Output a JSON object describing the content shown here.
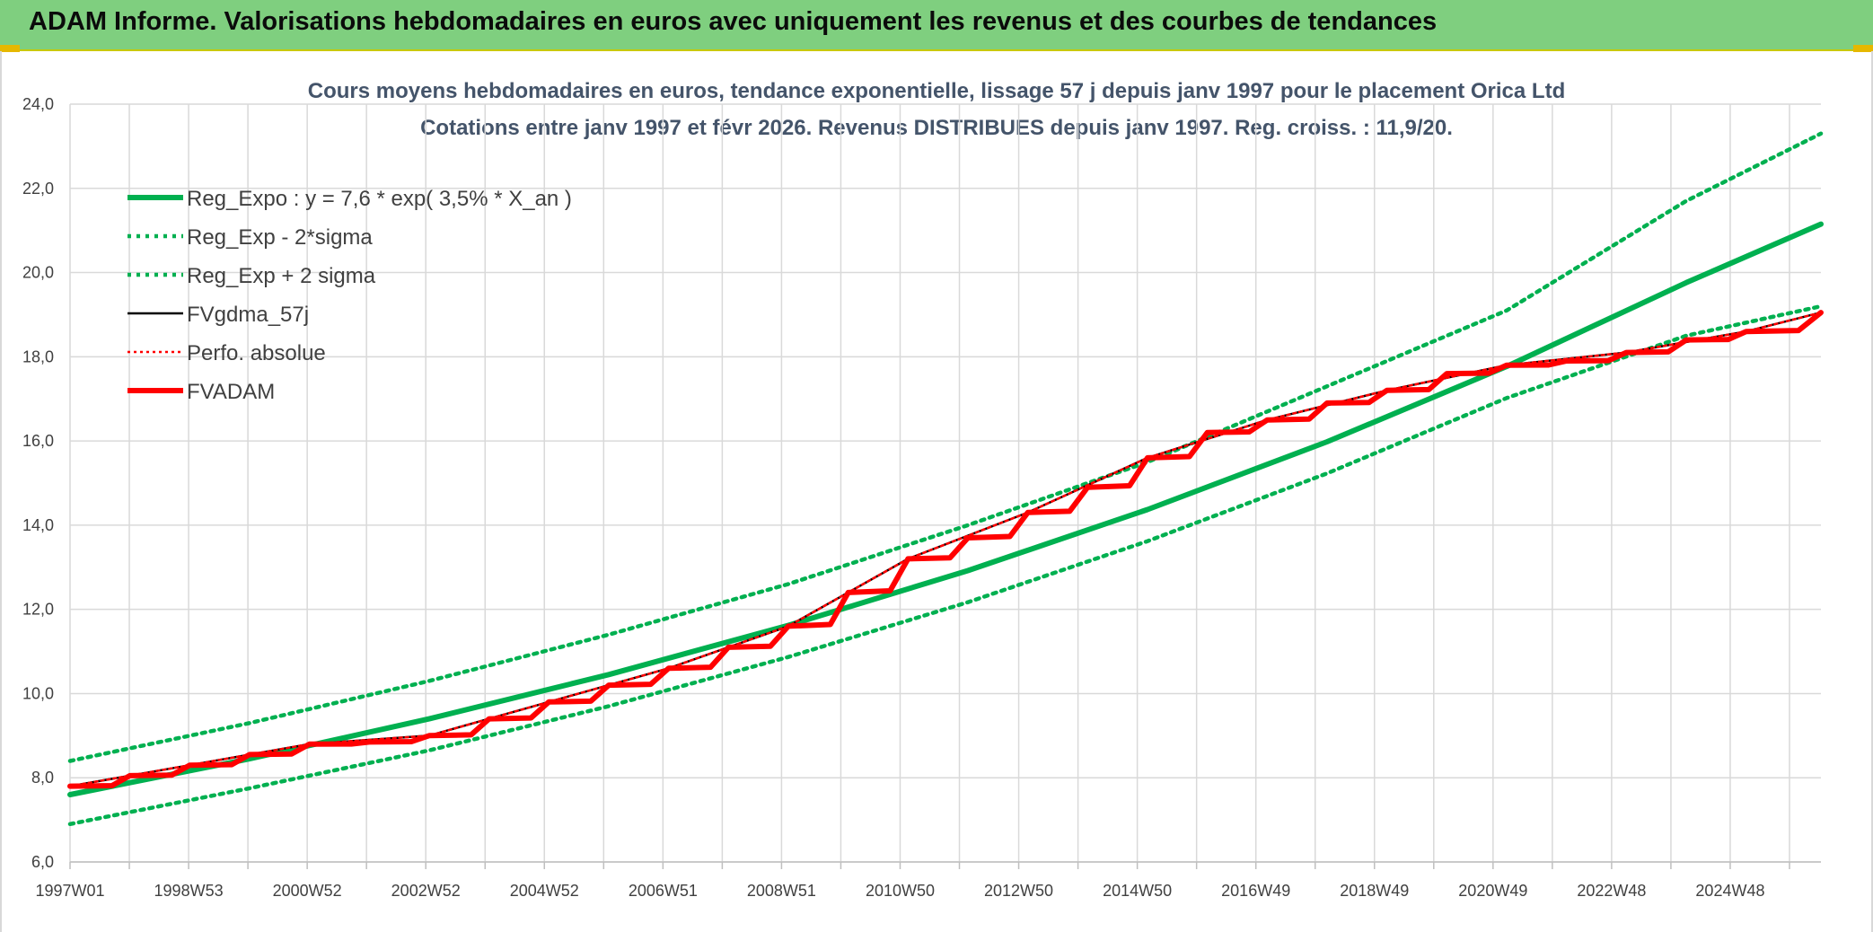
{
  "header": {
    "title": "ADAM Informe. Valorisations hebdomadaires en euros avec uniquement les revenus et des courbes de tendances"
  },
  "colors": {
    "header_bg": "#7fcf7f",
    "reg_expo": "#00b050",
    "fvgdma": "#000000",
    "perfo": "#ff0000",
    "fvadam": "#ff0000"
  },
  "chart_data": {
    "type": "line",
    "title": "Cours moyens hebdomadaires en euros, tendance exponentielle, lissage 57 j depuis janv 1997 pour le placement Orica Ltd",
    "subtitle": "Cotations entre janv 1997 et févr 2026. Revenus DISTRIBUES depuis janv 1997. Reg. croiss. : 11,9/20.",
    "xlabel": "",
    "ylabel": "",
    "ylim": [
      6,
      24
    ],
    "yticks": [
      "24,0",
      "22,0",
      "20,0",
      "18,0",
      "16,0",
      "14,0",
      "12,0",
      "10,0",
      "8,0",
      "6,0"
    ],
    "xlim": [
      1997.0,
      2026.25
    ],
    "xtick_labels": [
      "1997W01",
      "1998W53",
      "2000W52",
      "2002W52",
      "2004W52",
      "2006W51",
      "2008W51",
      "2010W50",
      "2012W50",
      "2014W50",
      "2016W49",
      "2018W49",
      "2020W49",
      "2022W48",
      "2024W48"
    ],
    "grid": true,
    "legend_position": "top-left",
    "series": [
      {
        "name": "Reg_Expo : y = 7,6 * exp( 3,5% *  X_an )",
        "style": "solid-thick",
        "color": "#00b050",
        "x": [
          1997,
          2000,
          2003,
          2006,
          2009,
          2012,
          2015,
          2018,
          2021,
          2024,
          2026.25
        ],
        "values": [
          7.6,
          8.45,
          9.4,
          10.45,
          11.62,
          12.92,
          14.37,
          15.98,
          17.77,
          19.76,
          21.15
        ]
      },
      {
        "name": "Reg_Exp - 2*sigma",
        "style": "dotted",
        "color": "#00b050",
        "x": [
          1997,
          2000,
          2003,
          2006,
          2009,
          2012,
          2015,
          2018,
          2021,
          2024,
          2026.25
        ],
        "values": [
          6.9,
          7.75,
          8.65,
          9.7,
          10.87,
          12.17,
          13.62,
          15.23,
          17.02,
          18.5,
          19.2
        ]
      },
      {
        "name": "Reg_Exp + 2 sigma",
        "style": "dotted",
        "color": "#00b050",
        "x": [
          1997,
          2000,
          2003,
          2006,
          2009,
          2012,
          2015,
          2018,
          2021,
          2024,
          2026.25
        ],
        "values": [
          8.4,
          9.3,
          10.3,
          11.4,
          12.6,
          14.0,
          15.5,
          17.3,
          19.1,
          21.7,
          23.3
        ]
      },
      {
        "name": "FVgdma_57j",
        "style": "solid",
        "color": "#000000",
        "x": [
          1997,
          1999,
          2001,
          2003,
          2005,
          2007,
          2009,
          2011,
          2013,
          2015,
          2017,
          2019,
          2021,
          2023,
          2025,
          2026.25
        ],
        "values": [
          7.8,
          8.3,
          8.8,
          9.0,
          9.8,
          10.6,
          11.6,
          13.2,
          14.3,
          15.6,
          16.5,
          17.2,
          17.8,
          18.1,
          18.6,
          19.05
        ]
      },
      {
        "name": "Perfo. absolue",
        "style": "dotted-thin",
        "color": "#ff0000",
        "x": [
          1997,
          1999,
          2001,
          2003,
          2005,
          2007,
          2009,
          2011,
          2013,
          2015,
          2017,
          2019,
          2021,
          2023,
          2025,
          2026.25
        ],
        "values": [
          7.8,
          8.3,
          8.8,
          9.0,
          9.8,
          10.6,
          11.6,
          13.2,
          14.3,
          15.6,
          16.5,
          17.2,
          17.8,
          18.1,
          18.6,
          19.05
        ]
      },
      {
        "name": "FVADAM",
        "style": "solid-thick",
        "color": "#ff0000",
        "x": [
          1997,
          1998,
          1999,
          2000,
          2001,
          2002,
          2003,
          2004,
          2005,
          2006,
          2007,
          2008,
          2009,
          2010,
          2011,
          2012,
          2013,
          2014,
          2015,
          2016,
          2017,
          2018,
          2019,
          2020,
          2021,
          2022,
          2023,
          2024,
          2025,
          2026.25
        ],
        "values": [
          7.8,
          8.05,
          8.3,
          8.55,
          8.8,
          8.85,
          9.0,
          9.4,
          9.8,
          10.2,
          10.6,
          11.1,
          11.6,
          12.4,
          13.2,
          13.7,
          14.3,
          14.9,
          15.6,
          16.2,
          16.5,
          16.9,
          17.2,
          17.6,
          17.8,
          17.9,
          18.1,
          18.4,
          18.6,
          19.05
        ]
      }
    ]
  }
}
